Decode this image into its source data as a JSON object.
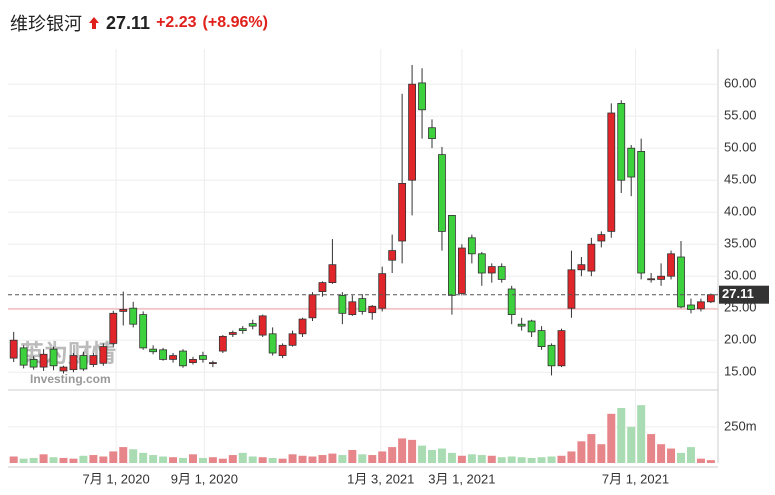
{
  "header": {
    "name": "维珍银河",
    "change": "+2.23",
    "change_pct": "(+8.96%)"
  },
  "watermark": {
    "brand": "英为财情",
    "site": "Investing.com"
  },
  "chart_data": {
    "type": "candlestick",
    "x": [
      "2020-04-20",
      "2020-04-27",
      "2020-05-04",
      "2020-05-11",
      "2020-05-18",
      "2020-05-25",
      "2020-06-01",
      "2020-06-08",
      "2020-06-15",
      "2020-06-22",
      "2020-06-29",
      "2020-07-06",
      "2020-07-13",
      "2020-07-20",
      "2020-07-27",
      "2020-08-03",
      "2020-08-10",
      "2020-08-17",
      "2020-08-24",
      "2020-08-31",
      "2020-09-07",
      "2020-09-14",
      "2020-09-21",
      "2020-09-28",
      "2020-10-05",
      "2020-10-12",
      "2020-10-19",
      "2020-10-26",
      "2020-11-02",
      "2020-11-09",
      "2020-11-16",
      "2020-11-23",
      "2020-11-30",
      "2020-12-07",
      "2020-12-14",
      "2020-12-21",
      "2020-12-28",
      "2021-01-04",
      "2021-01-11",
      "2021-01-18",
      "2021-01-25",
      "2021-02-01",
      "2021-02-08",
      "2021-02-15",
      "2021-02-22",
      "2021-03-01",
      "2021-03-08",
      "2021-03-15",
      "2021-03-22",
      "2021-03-29",
      "2021-04-05",
      "2021-04-12",
      "2021-04-19",
      "2021-04-26",
      "2021-05-03",
      "2021-05-10",
      "2021-05-17",
      "2021-05-24",
      "2021-05-31",
      "2021-06-07",
      "2021-06-14",
      "2021-06-21",
      "2021-06-28",
      "2021-07-05",
      "2021-07-12",
      "2021-07-19",
      "2021-07-26",
      "2021-08-02",
      "2021-08-09",
      "2021-08-16",
      "2021-08-23"
    ],
    "open": [
      17.2,
      18.8,
      17.0,
      15.8,
      18.6,
      15.2,
      15.4,
      17.6,
      16.2,
      16.4,
      19.5,
      24.5,
      25.0,
      24.0,
      18.6,
      18.5,
      17.0,
      18.3,
      16.5,
      17.6,
      16.4,
      18.3,
      20.9,
      21.8,
      22.6,
      20.8,
      21.0,
      17.6,
      19.2,
      21.0,
      23.5,
      27.6,
      29.0,
      27.0,
      24.0,
      26.5,
      24.3,
      25.0,
      32.5,
      35.5,
      45.0,
      60.2,
      53.2,
      49.0,
      39.5,
      27.3,
      36.0,
      33.5,
      30.5,
      31.5,
      28.0,
      22.5,
      23.0,
      21.5,
      19.2,
      16.0,
      25.0,
      31.0,
      30.8,
      35.5,
      37.0,
      57.0,
      50.0,
      49.5,
      29.5,
      29.5,
      30.0,
      33.0,
      25.5,
      24.9,
      26.0
    ],
    "high": [
      21.3,
      19.2,
      17.5,
      18.6,
      19.0,
      16.0,
      18.0,
      18.2,
      18.0,
      19.5,
      24.6,
      27.6,
      26.0,
      24.5,
      19.2,
      18.8,
      18.0,
      18.6,
      17.4,
      18.2,
      16.8,
      20.8,
      21.5,
      22.2,
      23.2,
      24.0,
      22.0,
      19.5,
      21.5,
      23.5,
      27.5,
      29.2,
      35.8,
      27.5,
      27.0,
      27.2,
      25.5,
      31.5,
      36.5,
      58.5,
      63.0,
      62.5,
      54.5,
      50.2,
      39.5,
      35.0,
      36.5,
      33.8,
      32.0,
      32.0,
      28.5,
      23.5,
      23.2,
      22.2,
      19.5,
      21.8,
      34.0,
      33.0,
      36.0,
      37.0,
      57.0,
      57.5,
      50.5,
      51.5,
      30.5,
      32.0,
      34.0,
      35.5,
      26.5,
      26.5,
      27.3
    ],
    "low": [
      16.6,
      15.6,
      15.4,
      15.2,
      15.3,
      14.8,
      15.0,
      15.2,
      15.8,
      16.0,
      19.0,
      22.3,
      22.0,
      18.5,
      17.8,
      16.8,
      16.5,
      15.7,
      16.2,
      16.5,
      15.8,
      18.0,
      20.5,
      21.0,
      21.7,
      20.5,
      17.6,
      17.2,
      19.0,
      20.5,
      23.0,
      26.8,
      28.8,
      22.5,
      23.8,
      24.0,
      23.2,
      24.5,
      30.5,
      32.0,
      39.5,
      51.5,
      50.0,
      34.0,
      24.0,
      27.0,
      32.0,
      28.5,
      29.0,
      29.0,
      22.5,
      21.5,
      20.5,
      18.5,
      14.5,
      15.8,
      23.5,
      30.0,
      30.0,
      34.5,
      36.0,
      43.0,
      42.5,
      29.5,
      29.0,
      28.5,
      29.5,
      25.0,
      24.2,
      24.5,
      25.8
    ],
    "close": [
      20.0,
      16.1,
      15.8,
      17.8,
      16.0,
      15.8,
      17.6,
      15.5,
      17.6,
      19.0,
      24.2,
      24.8,
      22.5,
      18.8,
      18.2,
      17.0,
      17.6,
      16.0,
      17.0,
      17.0,
      16.5,
      20.6,
      21.2,
      21.5,
      22.2,
      23.8,
      18.0,
      19.2,
      21.0,
      23.3,
      27.1,
      29.0,
      31.8,
      24.2,
      26.0,
      24.5,
      25.3,
      30.4,
      34.0,
      44.5,
      60.0,
      56.0,
      51.5,
      37.0,
      27.0,
      34.4,
      33.5,
      30.5,
      31.5,
      29.5,
      24.0,
      22.2,
      21.3,
      19.0,
      16.0,
      21.5,
      31.0,
      31.8,
      35.0,
      36.5,
      55.5,
      45.0,
      45.5,
      30.5,
      29.6,
      30.0,
      33.5,
      25.2,
      24.8,
      26.0,
      27.11
    ],
    "volume": [
      45,
      30,
      35,
      60,
      40,
      35,
      30,
      50,
      55,
      45,
      80,
      110,
      95,
      70,
      55,
      45,
      40,
      35,
      60,
      35,
      40,
      30,
      55,
      70,
      45,
      40,
      35,
      30,
      60,
      50,
      45,
      55,
      65,
      55,
      90,
      60,
      55,
      80,
      110,
      170,
      160,
      120,
      90,
      100,
      70,
      50,
      60,
      55,
      50,
      40,
      45,
      40,
      35,
      40,
      45,
      50,
      80,
      150,
      200,
      130,
      340,
      380,
      250,
      400,
      200,
      130,
      100,
      70,
      110,
      30,
      20
    ],
    "up_color": "#e0262a",
    "down_color": "#3dd13d",
    "up_volume_color": "#e7868a",
    "down_volume_color": "#a9dcb3",
    "reference_line": 24.88,
    "xlim": [
      "2020-04-16",
      "2021-08-28"
    ],
    "xticks": [
      {
        "value": "2020-07-01",
        "label": "7月 1, 2020"
      },
      {
        "value": "2020-09-01",
        "label": "9月 1, 2020"
      },
      {
        "value": "2021-01-03",
        "label": "1月 3, 2021"
      },
      {
        "value": "2021-03-01",
        "label": "3月 1, 2021"
      },
      {
        "value": "2021-07-01",
        "label": "7月 1, 2021"
      }
    ],
    "ylim": [
      13,
      65.5
    ],
    "yticks": [
      {
        "value": 15,
        "label": "15.00"
      },
      {
        "value": 20,
        "label": "20.00"
      },
      {
        "value": 25,
        "label": "25.00"
      },
      {
        "value": 30,
        "label": "30.00"
      },
      {
        "value": 35,
        "label": "35.00"
      },
      {
        "value": 40,
        "label": "40.00"
      },
      {
        "value": 45,
        "label": "45.00"
      },
      {
        "value": 50,
        "label": "50.00"
      },
      {
        "value": 55,
        "label": "55.00"
      },
      {
        "value": 60,
        "label": "60.00"
      }
    ],
    "y2lim": [
      0,
      470
    ],
    "y2ticks": [
      {
        "value": 250,
        "label": "250m"
      }
    ],
    "grid": true
  }
}
